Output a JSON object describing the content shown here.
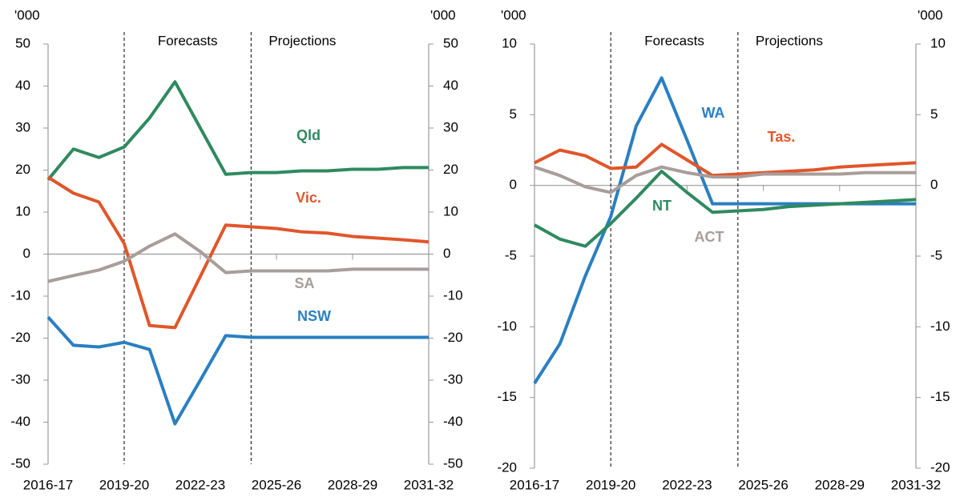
{
  "chart_data": [
    {
      "type": "line",
      "y_label": "'000",
      "y2_label": "'000",
      "annotations": [
        "Forecasts",
        "Projections"
      ],
      "categories": [
        "2016-17",
        null,
        null,
        "2019-20",
        null,
        null,
        "2022-23",
        null,
        null,
        "2025-26",
        null,
        null,
        "2028-29",
        null,
        null,
        "2031-32"
      ],
      "ylim": [
        -50,
        50
      ],
      "yticks": [
        -50,
        -40,
        -30,
        -20,
        -10,
        0,
        10,
        20,
        30,
        40,
        50
      ],
      "y2lim": [
        -50,
        50
      ],
      "y2ticks": [
        -50,
        -40,
        -30,
        -20,
        -10,
        0,
        10,
        20,
        30,
        40,
        50
      ],
      "series": [
        {
          "name": "Qld",
          "color": "#2f8a5f",
          "values": [
            17.7,
            25,
            23,
            25.5,
            32.4,
            41,
            30,
            19,
            19.4,
            19.4,
            19.8,
            19.8,
            20.2,
            20.2,
            20.6,
            20.6
          ]
        },
        {
          "name": "Vic.",
          "color": "#e0562a",
          "values": [
            18.3,
            14.5,
            12.4,
            2.5,
            -17,
            -17.5,
            -5.3,
            6.9,
            6.5,
            6.1,
            5.3,
            5,
            4.2,
            3.8,
            3.4,
            2.9
          ]
        },
        {
          "name": "SA",
          "color": "#a89d9a",
          "values": [
            -6.5,
            -5.1,
            -3.8,
            -1.7,
            1.9,
            4.8,
            0.6,
            -4.4,
            -4,
            -4,
            -4,
            -4,
            -3.6,
            -3.6,
            -3.6,
            -3.6
          ]
        },
        {
          "name": "NSW",
          "color": "#2a7fc1",
          "values": [
            -15,
            -21.7,
            -22.1,
            -21,
            -22.7,
            -40.4,
            -30,
            -19.4,
            -19.8,
            -19.8,
            -19.8,
            -19.8,
            -19.8,
            -19.8,
            -19.8,
            -19.8
          ]
        }
      ]
    },
    {
      "type": "line",
      "y_label": "'000",
      "y2_label": "'000",
      "annotations": [
        "Forecasts",
        "Projections"
      ],
      "categories": [
        "2016-17",
        null,
        null,
        "2019-20",
        null,
        null,
        "2022-23",
        null,
        null,
        "2025-26",
        null,
        null,
        "2028-29",
        null,
        null,
        "2031-32"
      ],
      "ylim": [
        -20,
        10
      ],
      "yticks": [
        -20,
        -15,
        -10,
        -5,
        0,
        5,
        10
      ],
      "y2lim": [
        -20,
        10
      ],
      "y2ticks": [
        -20,
        -15,
        -10,
        -5,
        0,
        5,
        10
      ],
      "series": [
        {
          "name": "WA",
          "color": "#2a7fc1",
          "values": [
            -14,
            -11.2,
            -6.4,
            -2.2,
            4.2,
            7.6,
            3.2,
            -1.3,
            -1.3,
            -1.3,
            -1.3,
            -1.3,
            -1.3,
            -1.3,
            -1.3,
            -1.3
          ]
        },
        {
          "name": "Tas.",
          "color": "#e0562a",
          "values": [
            1.6,
            2.5,
            2.1,
            1.2,
            1.3,
            2.9,
            1.8,
            0.7,
            0.8,
            0.9,
            1.0,
            1.1,
            1.3,
            1.4,
            1.5,
            1.6
          ]
        },
        {
          "name": "NT",
          "color": "#2f8a5f",
          "values": [
            -2.8,
            -3.8,
            -4.3,
            -2.7,
            -0.9,
            1.0,
            -0.5,
            -1.9,
            -1.8,
            -1.7,
            -1.5,
            -1.4,
            -1.3,
            -1.2,
            -1.1,
            -1.0
          ]
        },
        {
          "name": "ACT",
          "color": "#a89d9a",
          "values": [
            1.3,
            0.7,
            -0.1,
            -0.5,
            0.7,
            1.3,
            0.9,
            0.6,
            0.6,
            0.8,
            0.8,
            0.8,
            0.8,
            0.9,
            0.9,
            0.9
          ]
        }
      ]
    }
  ]
}
